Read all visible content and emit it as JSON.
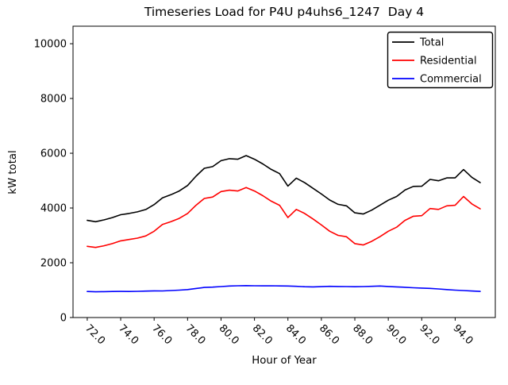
{
  "chart_data": {
    "type": "line",
    "title": "Timeseries Load for P4U p4uhs6_1247  Day 4",
    "xlabel": "Hour of Year",
    "ylabel": "kW total",
    "xlim": [
      71.15,
      96.4
    ],
    "ylim": [
      0,
      10640
    ],
    "grid": false,
    "legend_position": "upper right",
    "x_ticks": [
      72,
      74,
      76,
      78,
      80,
      82,
      84,
      86,
      88,
      90,
      92,
      94
    ],
    "x_tick_labels": [
      "72.0",
      "74.0",
      "76.0",
      "78.0",
      "80.0",
      "82.0",
      "84.0",
      "86.0",
      "88.0",
      "90.0",
      "92.0",
      "94.0"
    ],
    "y_ticks": [
      0,
      2000,
      4000,
      6000,
      8000,
      10000
    ],
    "y_tick_labels": [
      "0",
      "2000",
      "4000",
      "6000",
      "8000",
      "10000"
    ],
    "x": [
      72,
      72.5,
      73,
      73.5,
      74,
      74.5,
      75,
      75.5,
      76,
      76.5,
      77,
      77.5,
      78,
      78.5,
      79,
      79.5,
      80,
      80.5,
      81,
      81.5,
      82,
      82.5,
      83,
      83.5,
      84,
      84.5,
      85,
      85.5,
      86,
      86.5,
      87,
      87.5,
      88,
      88.5,
      89,
      89.5,
      90,
      90.5,
      91,
      91.5,
      92,
      92.5,
      93,
      93.5,
      94,
      94.5,
      95,
      95.5
    ],
    "series": [
      {
        "name": "Total",
        "color": "#000000",
        "values": [
          3550,
          3500,
          3565,
          3650,
          3755,
          3800,
          3860,
          3945,
          4125,
          4370,
          4485,
          4620,
          4820,
          5160,
          5450,
          5510,
          5730,
          5800,
          5780,
          5915,
          5780,
          5610,
          5410,
          5255,
          4800,
          5090,
          4925,
          4720,
          4510,
          4290,
          4135,
          4080,
          3825,
          3780,
          3920,
          4100,
          4285,
          4420,
          4655,
          4790,
          4795,
          5045,
          4995,
          5100,
          5100,
          5405,
          5120,
          4925
        ]
      },
      {
        "name": "Residential",
        "color": "#ff0000",
        "values": [
          2600,
          2560,
          2620,
          2700,
          2800,
          2850,
          2900,
          2980,
          3150,
          3400,
          3500,
          3620,
          3800,
          4100,
          4350,
          4400,
          4600,
          4650,
          4620,
          4750,
          4620,
          4450,
          4250,
          4100,
          3650,
          3950,
          3800,
          3600,
          3380,
          3150,
          3000,
          2950,
          2700,
          2650,
          2780,
          2950,
          3150,
          3300,
          3550,
          3700,
          3720,
          3980,
          3950,
          4080,
          4100,
          4420,
          4150,
          3970
        ]
      },
      {
        "name": "Commercial",
        "color": "#0000ff",
        "values": [
          950,
          940,
          945,
          950,
          955,
          950,
          958,
          965,
          975,
          970,
          985,
          1000,
          1020,
          1060,
          1100,
          1110,
          1130,
          1150,
          1160,
          1165,
          1160,
          1158,
          1160,
          1155,
          1150,
          1140,
          1125,
          1118,
          1128,
          1140,
          1135,
          1130,
          1125,
          1132,
          1138,
          1150,
          1135,
          1118,
          1105,
          1088,
          1075,
          1065,
          1045,
          1020,
          1000,
          985,
          968,
          955
        ]
      }
    ]
  }
}
